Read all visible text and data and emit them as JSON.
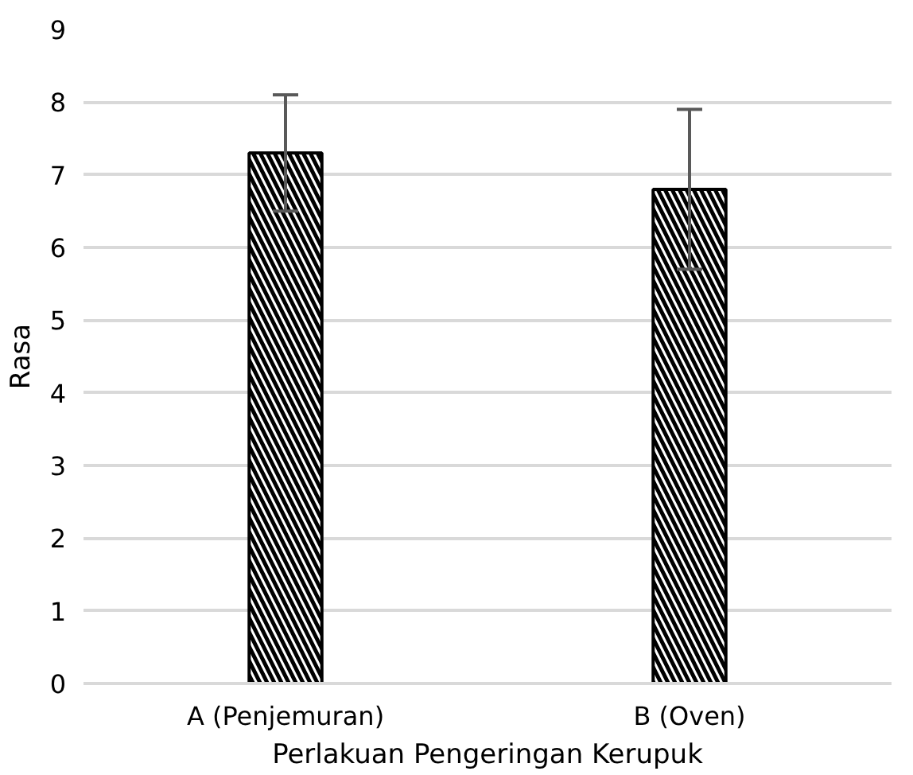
{
  "chart_data": {
    "type": "bar",
    "xlabel": "Perlakuan Pengeringan Kerupuk",
    "ylabel": "Rasa",
    "categories": [
      "A (Penjemuran)",
      "B (Oven)"
    ],
    "values": [
      7.3,
      6.8
    ],
    "errors": [
      0.8,
      1.1
    ],
    "color": "#000000",
    "ylim": [
      0,
      9
    ],
    "yticks": [
      0,
      1,
      2,
      3,
      4,
      5,
      6,
      7,
      8,
      9
    ],
    "grid": "y"
  }
}
